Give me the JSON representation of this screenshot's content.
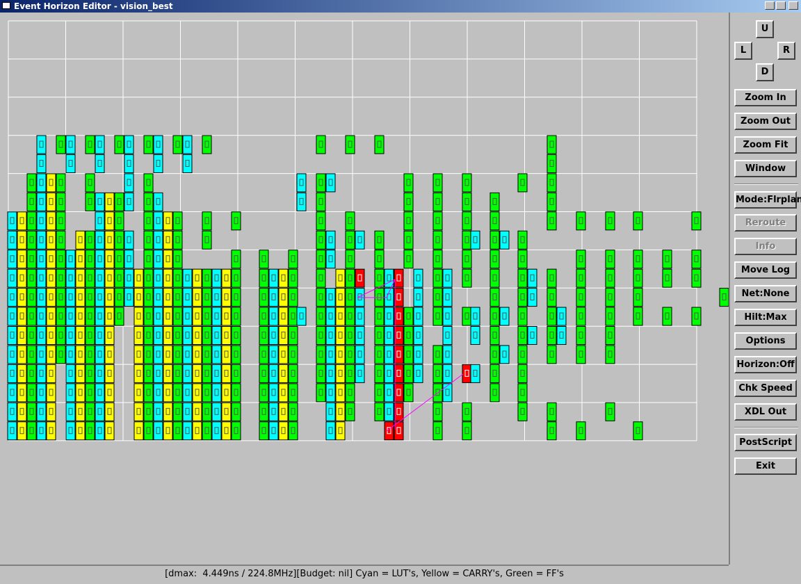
{
  "window": {
    "title": "Event Horizon Editor - vision_best"
  },
  "direction_buttons": {
    "up": "U",
    "left": "L",
    "right": "R",
    "down": "D"
  },
  "buttons": [
    {
      "label": "Zoom In",
      "enabled": true
    },
    {
      "label": "Zoom Out",
      "enabled": true
    },
    {
      "label": "Zoom Fit",
      "enabled": true
    },
    {
      "label": "Window",
      "enabled": true
    },
    {
      "label": "Mode:Flrplan",
      "enabled": true
    },
    {
      "label": "Reroute",
      "enabled": false
    },
    {
      "label": "Info",
      "enabled": false
    },
    {
      "label": "Move Log",
      "enabled": true
    },
    {
      "label": "Net:None",
      "enabled": true
    },
    {
      "label": "Hilt:Max",
      "enabled": true
    },
    {
      "label": "Options",
      "enabled": true
    },
    {
      "label": "Horizon:Off",
      "enabled": true
    },
    {
      "label": "Chk Speed",
      "enabled": true
    },
    {
      "label": "XDL Out",
      "enabled": true
    },
    {
      "label": "PostScript",
      "enabled": true
    },
    {
      "label": "Exit",
      "enabled": true
    }
  ],
  "status_bar": "[dmax:  4.449ns / 224.8MHz][Budget: nil] Cyan = LUT's, Yellow = CARRY's, Green = FF's"
}
